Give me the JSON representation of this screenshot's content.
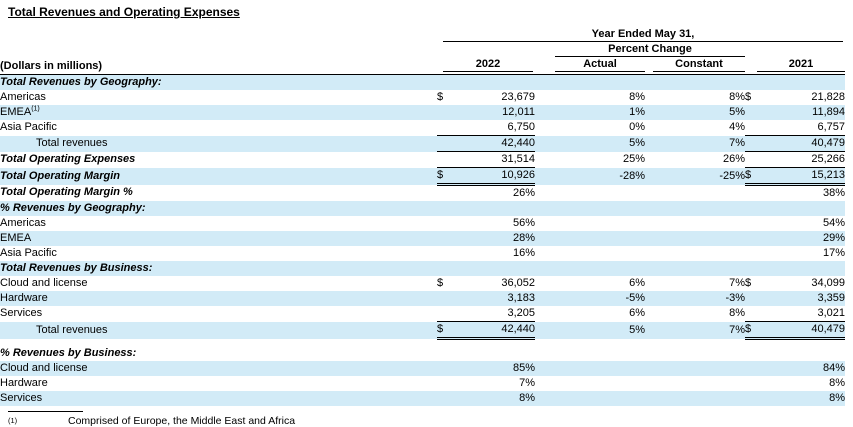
{
  "page": {
    "title": "Total Revenues and Operating Expenses"
  },
  "table": {
    "dollars_note": "(Dollars in millions)",
    "header": {
      "year_ended": "Year Ended May 31,",
      "percent_change": "Percent Change",
      "y2022": "2022",
      "actual": "Actual",
      "constant": "Constant",
      "y2021": "2021"
    },
    "rows": [
      {
        "label": "Total Revenues by Geography:",
        "bi": true,
        "shade": true
      },
      {
        "label": "Americas",
        "d1": "$",
        "v2022": "23,679",
        "actual": "8%",
        "constant": "8%",
        "d2": "$",
        "v2021": "21,828"
      },
      {
        "label": "EMEA",
        "sup": "(1)",
        "shade": true,
        "v2022": "12,011",
        "actual": "1%",
        "constant": "5%",
        "v2021": "11,894"
      },
      {
        "label": "Asia Pacific",
        "v2022": "6,750",
        "actual": "0%",
        "constant": "4%",
        "v2021": "6,757",
        "u": "single"
      },
      {
        "label": "Total revenues",
        "indent": true,
        "shade": true,
        "v2022": "42,440",
        "actual": "5%",
        "constant": "7%",
        "v2021": "40,479",
        "u": "single"
      },
      {
        "label": "Total Operating Expenses",
        "bi": true,
        "v2022": "31,514",
        "actual": "25%",
        "constant": "26%",
        "v2021": "25,266",
        "u": "single"
      },
      {
        "label": "Total Operating Margin",
        "bi": true,
        "shade": true,
        "d1": "$",
        "v2022": "10,926",
        "actual": "-28%",
        "constant": "-25%",
        "d2": "$",
        "v2021": "15,213",
        "u": "double"
      },
      {
        "label": "Total Operating Margin %",
        "bi": true,
        "v2022": "26%",
        "v2021": "38%"
      },
      {
        "label": "% Revenues by Geography:",
        "bi": true,
        "shade": true
      },
      {
        "label": "Americas",
        "v2022": "56%",
        "v2021": "54%"
      },
      {
        "label": "EMEA",
        "shade": true,
        "v2022": "28%",
        "v2021": "29%"
      },
      {
        "label": "Asia Pacific",
        "v2022": "16%",
        "v2021": "17%"
      },
      {
        "label": "Total Revenues by Business:",
        "bi": true,
        "shade": true
      },
      {
        "label": "Cloud and license",
        "d1": "$",
        "v2022": "36,052",
        "actual": "6%",
        "constant": "7%",
        "d2": "$",
        "v2021": "34,099"
      },
      {
        "label": "Hardware",
        "shade": true,
        "v2022": "3,183",
        "actual": "-5%",
        "constant": "-3%",
        "v2021": "3,359"
      },
      {
        "label": "Services",
        "v2022": "3,205",
        "actual": "6%",
        "constant": "8%",
        "v2021": "3,021",
        "u": "single"
      },
      {
        "label": "Total revenues",
        "indent": true,
        "shade": true,
        "d1": "$",
        "v2022": "42,440",
        "actual": "5%",
        "constant": "7%",
        "d2": "$",
        "v2021": "40,479",
        "u": "double"
      },
      {
        "spacer": true
      },
      {
        "label": "% Revenues by Business:",
        "bi": true
      },
      {
        "label": "Cloud and license",
        "shade": true,
        "v2022": "85%",
        "v2021": "84%"
      },
      {
        "label": "Hardware",
        "v2022": "7%",
        "v2021": "8%"
      },
      {
        "label": "Services",
        "shade": true,
        "v2022": "8%",
        "v2021": "8%"
      }
    ]
  },
  "footnote": {
    "marker": "(1)",
    "text": "Comprised of Europe, the Middle East and Africa"
  },
  "colors": {
    "row_shade": "#d2ebf7",
    "text": "#000000"
  }
}
